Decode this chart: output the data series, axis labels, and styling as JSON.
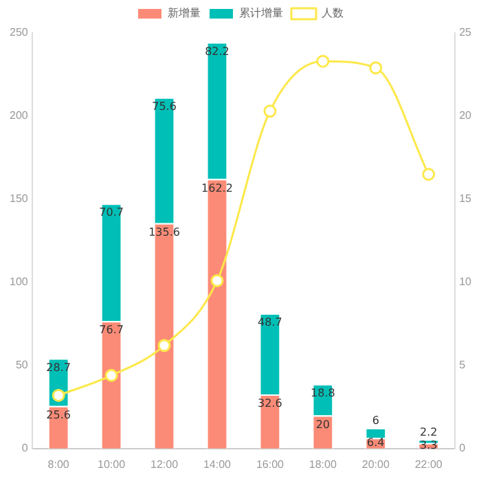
{
  "chart_data": {
    "type": "bar",
    "categories": [
      "8:00",
      "10:00",
      "12:00",
      "14:00",
      "16:00",
      "18:00",
      "20:00",
      "22:00"
    ],
    "stacked": true,
    "legend": "top",
    "grid": false,
    "ylim": [
      0,
      250
    ],
    "yticks": [
      0,
      50,
      100,
      150,
      200,
      250
    ],
    "y2lim": [
      0,
      25
    ],
    "y2ticks": [
      0,
      5,
      10,
      15,
      20,
      25
    ],
    "series": [
      {
        "name": "新增量",
        "color": "#fb8b76",
        "values": [
          25.6,
          76.7,
          135.6,
          162.2,
          32.6,
          20,
          6.4,
          3.3
        ],
        "value_labels": [
          "25.6",
          "76.7",
          "135.6",
          "162.2",
          "32.6",
          "20",
          "6.4",
          "3.3"
        ]
      },
      {
        "name": "累计增量",
        "color": "#00bfb6",
        "values": [
          28.7,
          70.7,
          75.6,
          82.2,
          48.7,
          18.8,
          6,
          2.2
        ],
        "value_labels": [
          "28.7",
          "70.7",
          "75.6",
          "82.2",
          "48.7",
          "18.8",
          "6",
          "2.2"
        ]
      },
      {
        "name": "人数",
        "type": "line",
        "axis": "y2",
        "color": "#fde84a",
        "marker": "circle",
        "line_style": "solid",
        "values": [
          3.2,
          4.4,
          6.2,
          10.1,
          20.3,
          23.3,
          22.9,
          16.5
        ]
      }
    ]
  }
}
